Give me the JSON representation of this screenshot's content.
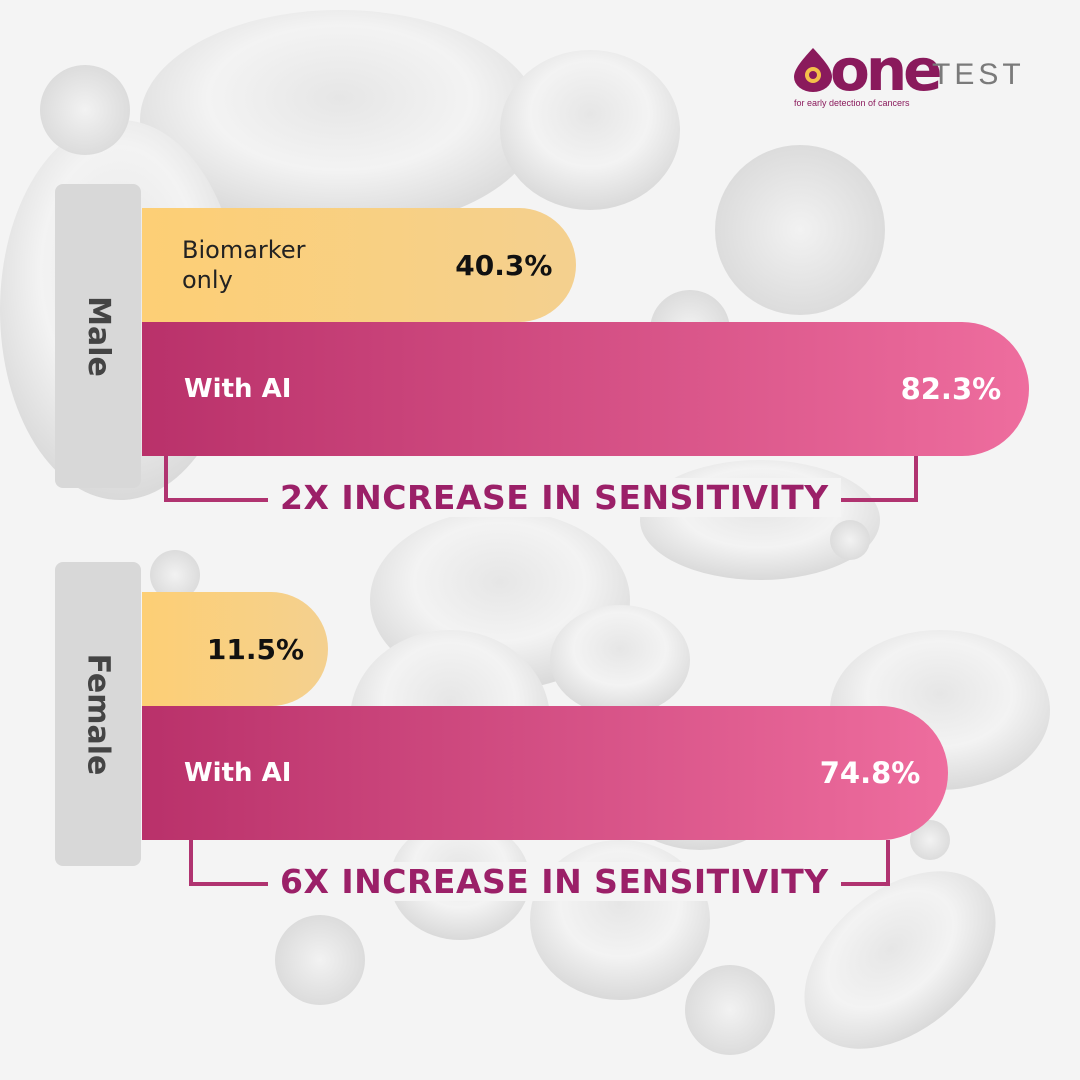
{
  "logo": {
    "wordmark_one": "one",
    "wordmark_test": "TEST",
    "tagline": "for early detection of cancers",
    "brand_color": "#8a1a5c"
  },
  "chart_data": [
    {
      "type": "bar",
      "orientation": "horizontal",
      "group": "Male",
      "categories": [
        "Biomarker only",
        "With AI"
      ],
      "values": [
        40.3,
        82.3
      ],
      "value_labels": [
        "40.3%",
        "82.3%"
      ],
      "colors": [
        "#fdcf75",
        "#c8386f"
      ],
      "annotation": "2X INCREASE IN SENSITIVITY",
      "xlim": [
        0,
        100
      ]
    },
    {
      "type": "bar",
      "orientation": "horizontal",
      "group": "Female",
      "categories": [
        "",
        "With AI"
      ],
      "values": [
        11.5,
        74.8
      ],
      "value_labels": [
        "11.5%",
        "74.8%"
      ],
      "colors": [
        "#fdcf75",
        "#c8386f"
      ],
      "annotation": "6X INCREASE IN SENSITIVITY",
      "xlim": [
        0,
        100
      ]
    }
  ]
}
